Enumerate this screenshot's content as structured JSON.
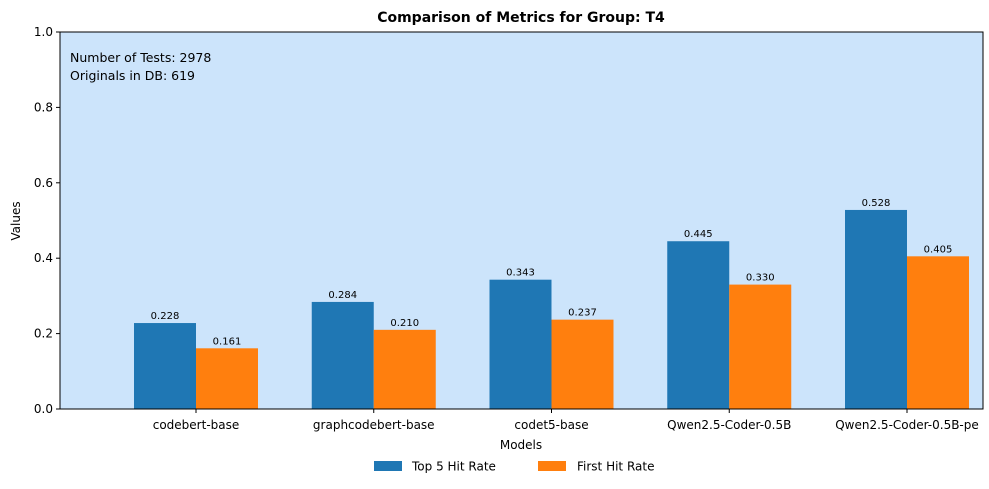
{
  "chart_data": {
    "type": "bar",
    "title": "Comparison of Metrics for Group: T4",
    "xlabel": "Models",
    "ylabel": "Values",
    "ylim": [
      0,
      1.0
    ],
    "yticks": [
      "0.0",
      "0.2",
      "0.4",
      "0.6",
      "0.8",
      "1.0"
    ],
    "grid": false,
    "plot_background": "#cce4fb",
    "legend_position": "bottom-center",
    "categories": [
      "codebert-base",
      "graphcodebert-base",
      "codet5-base",
      "Qwen2.5-Coder-0.5B",
      "Qwen2.5-Coder-0.5B-pe"
    ],
    "series": [
      {
        "name": "Top 5 Hit Rate",
        "color": "#1f77b4",
        "values": [
          0.228,
          0.284,
          0.343,
          0.445,
          0.528
        ],
        "labels": [
          "0.228",
          "0.284",
          "0.343",
          "0.445",
          "0.528"
        ]
      },
      {
        "name": "First Hit Rate",
        "color": "#ff7f0e",
        "values": [
          0.161,
          0.21,
          0.237,
          0.33,
          0.405
        ],
        "labels": [
          "0.161",
          "0.210",
          "0.237",
          "0.330",
          "0.405"
        ]
      }
    ],
    "annotations": [
      "Number of Tests: 2978",
      "Originals in DB: 619"
    ]
  }
}
